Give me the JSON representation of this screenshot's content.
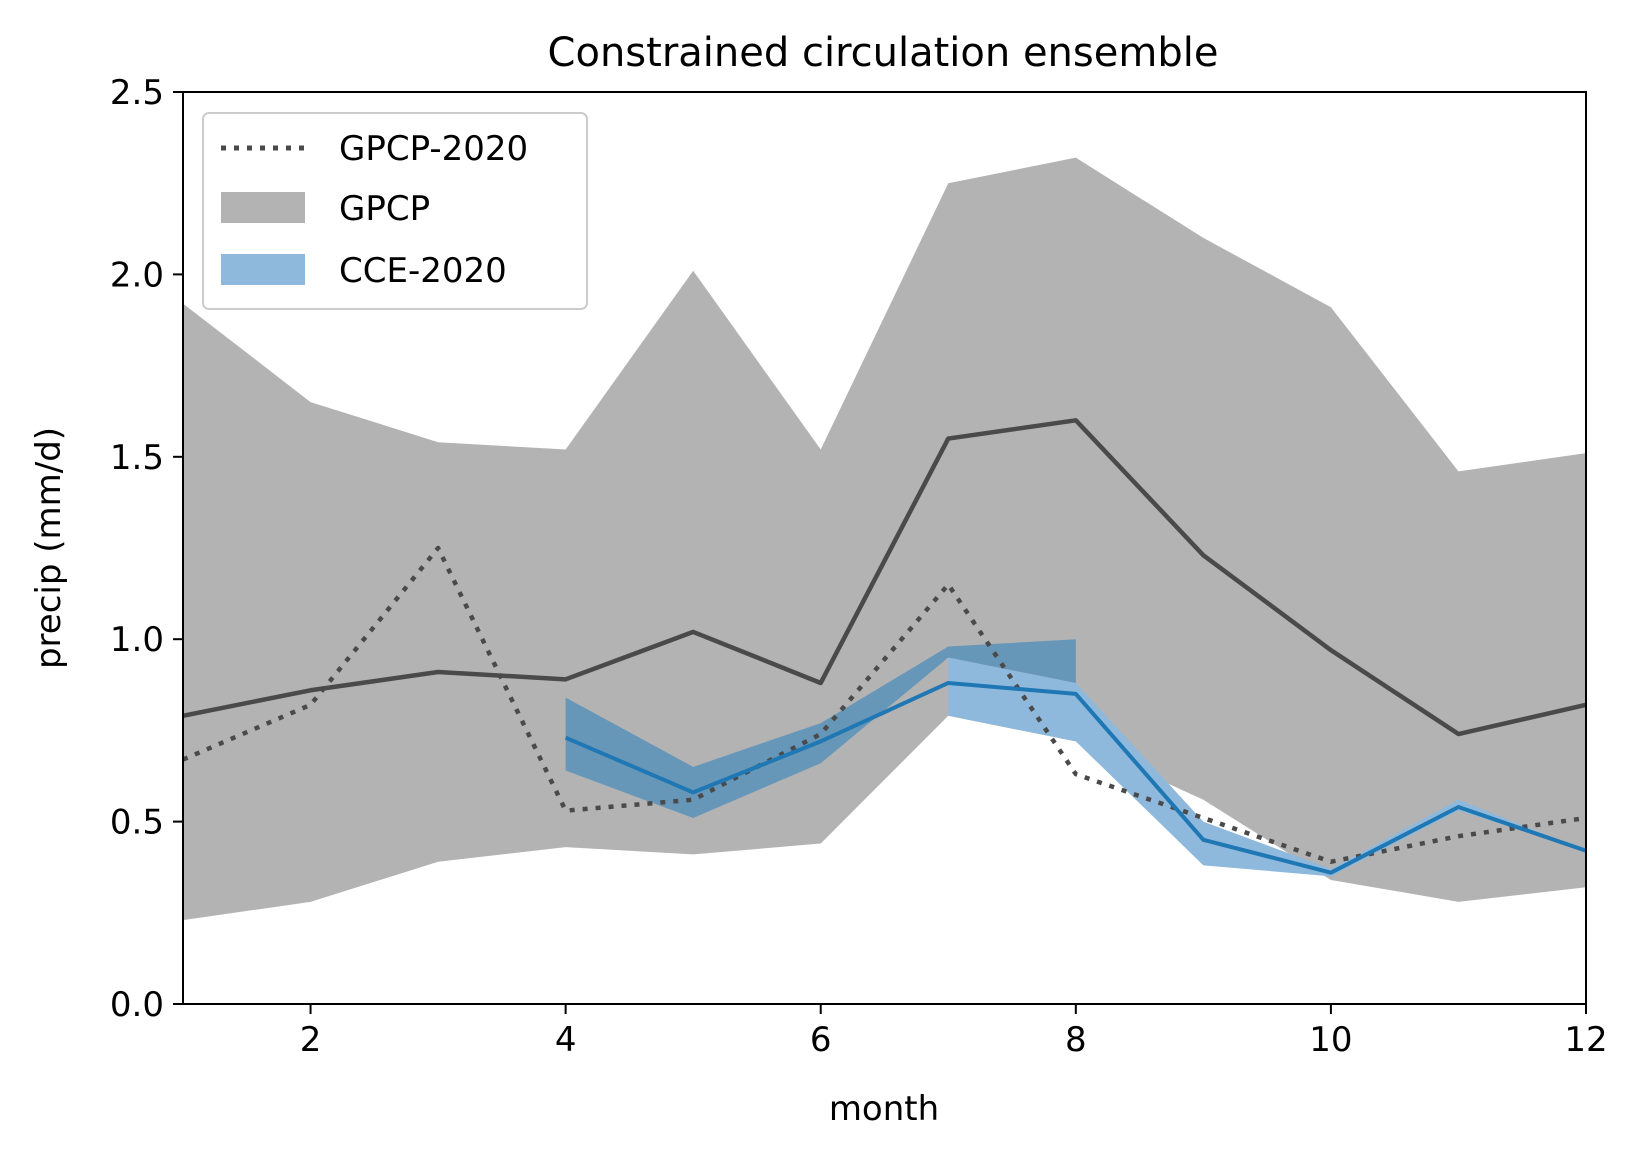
{
  "chart_data": {
    "type": "line",
    "title": "Constrained circulation ensemble",
    "xlabel": "month",
    "ylabel": "precip (mm/d)",
    "xlim": [
      1,
      12
    ],
    "ylim": [
      0,
      2.5
    ],
    "x_ticks": [
      2,
      4,
      6,
      8,
      10,
      12
    ],
    "y_ticks": [
      0.0,
      0.5,
      1.0,
      1.5,
      2.0,
      2.5
    ],
    "y_tick_labels": [
      "0.0",
      "0.5",
      "1.0",
      "1.5",
      "2.0",
      "2.5"
    ],
    "grid": false,
    "legend_position": "top-left",
    "legend": [
      {
        "label": "GPCP-2020",
        "kind": "dotted-line",
        "color": "#4a4a4a"
      },
      {
        "label": "GPCP",
        "kind": "patch",
        "color": "#b3b3b3"
      },
      {
        "label": "CCE-2020",
        "kind": "patch",
        "color": "#8fb9dc"
      }
    ],
    "series": [
      {
        "name": "GPCP",
        "kind": "band",
        "color": "#b3b3b3",
        "x": [
          1,
          2,
          3,
          4,
          5,
          6,
          7,
          8,
          9,
          10,
          11,
          12
        ],
        "lower": [
          0.23,
          0.28,
          0.39,
          0.43,
          0.41,
          0.44,
          0.79,
          0.72,
          0.56,
          0.34,
          0.28,
          0.32
        ],
        "upper": [
          1.92,
          1.65,
          1.54,
          1.52,
          2.01,
          1.52,
          2.25,
          2.32,
          2.1,
          1.91,
          1.46,
          1.51
        ]
      },
      {
        "name": "GPCP",
        "kind": "line",
        "style": "solid",
        "color": "#4a4a4a",
        "x": [
          1,
          2,
          3,
          4,
          5,
          6,
          7,
          8,
          9,
          10,
          11,
          12
        ],
        "values": [
          0.79,
          0.86,
          0.91,
          0.89,
          1.02,
          0.88,
          1.55,
          1.6,
          1.23,
          0.97,
          0.74,
          0.82
        ]
      },
      {
        "name": "GPCP-2020",
        "kind": "line",
        "style": "dotted",
        "color": "#4a4a4a",
        "x": [
          1,
          2,
          3,
          4,
          5,
          6,
          7,
          8,
          9,
          10,
          11,
          12
        ],
        "values": [
          0.67,
          0.82,
          1.25,
          0.53,
          0.56,
          0.74,
          1.15,
          0.63,
          0.51,
          0.39,
          0.46,
          0.51
        ]
      },
      {
        "name": "CCE-2020",
        "kind": "band",
        "color": "#8fb9dc",
        "x": [
          7,
          8,
          9,
          10,
          11,
          12
        ],
        "lower": [
          0.79,
          0.72,
          0.38,
          0.35,
          0.53,
          0.42
        ],
        "upper": [
          0.95,
          0.88,
          0.5,
          0.37,
          0.56,
          0.42
        ]
      },
      {
        "name": "",
        "kind": "band",
        "color": "#6797b8",
        "x": [
          4,
          5,
          6,
          7,
          8
        ],
        "lower": [
          0.64,
          0.51,
          0.66,
          0.95,
          0.88
        ],
        "upper": [
          0.84,
          0.65,
          0.77,
          0.98,
          1.0
        ]
      },
      {
        "name": "CCE-2020",
        "kind": "line",
        "style": "solid",
        "color": "#1f77b4",
        "x": [
          4,
          5,
          6,
          7,
          8,
          9,
          10,
          11,
          12
        ],
        "values": [
          0.73,
          0.58,
          0.72,
          0.88,
          0.85,
          0.45,
          0.36,
          0.54,
          0.42
        ]
      }
    ]
  }
}
